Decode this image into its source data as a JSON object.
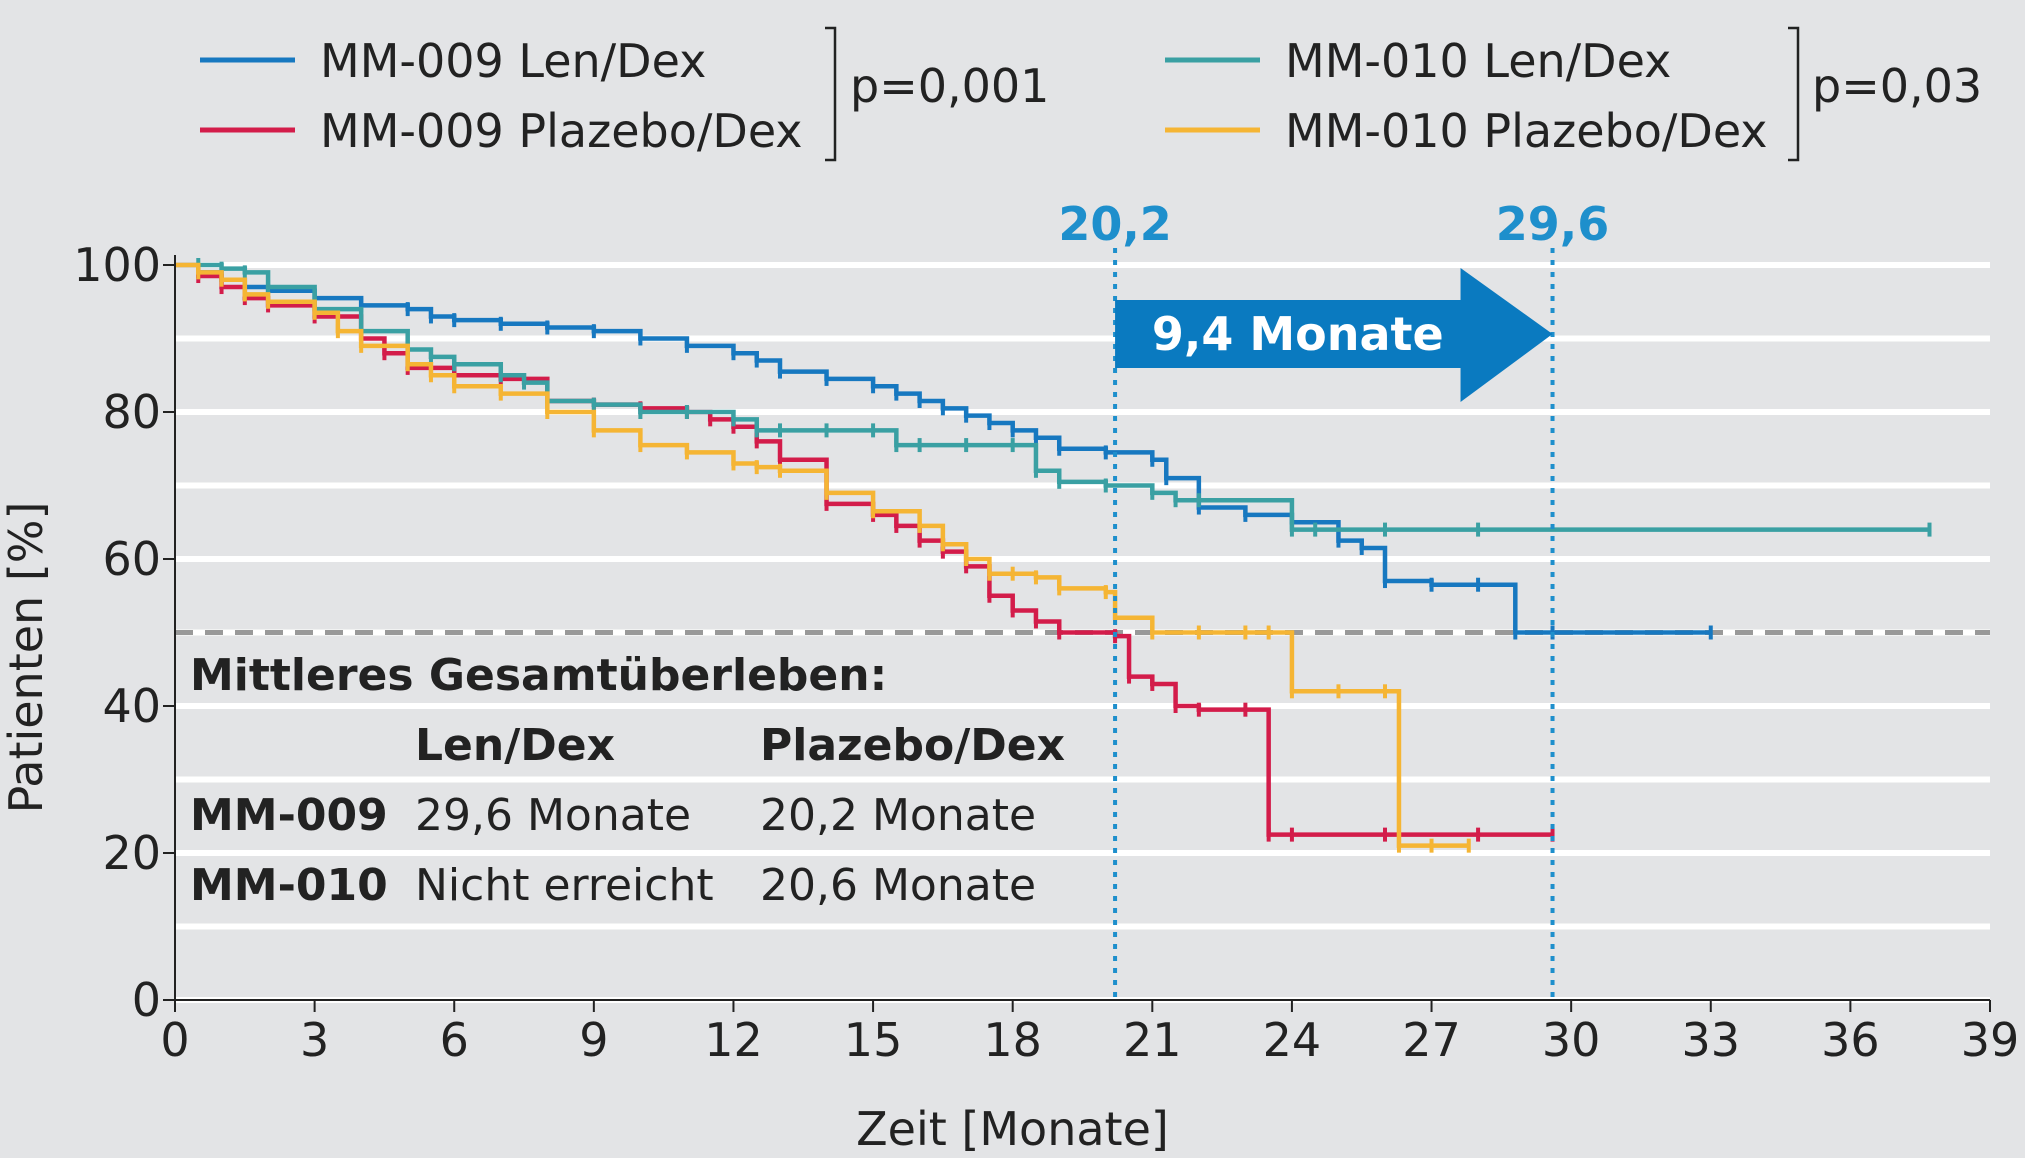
{
  "chart_data": {
    "type": "line",
    "subtype": "kaplan-meier",
    "xlabel": "Zeit [Monate]",
    "ylabel": "Patienten [%]",
    "xlim": [
      0,
      39
    ],
    "ylim": [
      0,
      100
    ],
    "xticks": [
      0,
      3,
      6,
      9,
      12,
      15,
      18,
      21,
      24,
      27,
      30,
      33,
      36,
      39
    ],
    "yticks": [
      0,
      20,
      40,
      60,
      80,
      100
    ],
    "grid": "horizontal",
    "background_color": "#e3e4e6",
    "reference_line": {
      "y": 50,
      "style": "dashed",
      "color": "#999999"
    },
    "legend": {
      "placement": "top",
      "groups": [
        {
          "entries": [
            "MM-009 Len/Dex",
            "MM-009 Plazebo/Dex"
          ],
          "pvalue": "p=0,001"
        },
        {
          "entries": [
            "MM-010 Len/Dex",
            "MM-010 Plazebo/Dex"
          ],
          "pvalue": "p=0,03"
        }
      ]
    },
    "median_markers": [
      {
        "x": 20.2,
        "label": "20,2"
      },
      {
        "x": 29.6,
        "label": "29,6"
      }
    ],
    "arrow": {
      "from": 20.2,
      "to": 29.6,
      "label": "9,4 Monate",
      "color": "#0a7ac0"
    },
    "series": [
      {
        "name": "MM-009 Len/Dex",
        "color": "#1778c0",
        "x": [
          0,
          0.5,
          1.0,
          1.5,
          2.0,
          3.0,
          4.0,
          5.0,
          5.5,
          6.0,
          7.0,
          8.0,
          9.0,
          10.0,
          11.0,
          12.0,
          12.5,
          13.0,
          14.0,
          15.0,
          15.5,
          16.0,
          16.5,
          17.0,
          17.5,
          18.0,
          18.5,
          19.0,
          20.0,
          21.0,
          21.3,
          22.0,
          23.0,
          24.0,
          25.0,
          25.5,
          26.0,
          27.0,
          28.0,
          28.8,
          29.6,
          33.0
        ],
        "y": [
          100,
          99,
          98,
          97,
          96.5,
          95.5,
          94.5,
          94,
          93,
          92.5,
          92,
          91.5,
          91,
          90,
          89,
          88,
          87,
          85.5,
          84.5,
          83.5,
          82.5,
          81.5,
          80.5,
          79.5,
          78.5,
          77.5,
          76.5,
          75,
          74.5,
          73.5,
          71,
          67,
          66,
          65,
          62.5,
          61.5,
          57,
          56.5,
          56.5,
          50,
          50,
          50
        ]
      },
      {
        "name": "MM-009 Plazebo/Dex",
        "color": "#d31c4a",
        "x": [
          0,
          0.5,
          1.0,
          1.5,
          2.0,
          3.0,
          4.0,
          4.5,
          5.0,
          6.0,
          7.0,
          8.0,
          9.0,
          10.0,
          11.0,
          11.5,
          12.0,
          12.5,
          13.0,
          14.0,
          15.0,
          15.5,
          16.0,
          16.5,
          17.0,
          17.5,
          18.0,
          18.5,
          19.0,
          20.2,
          20.5,
          21.0,
          21.5,
          22.0,
          23.0,
          23.5,
          24.0,
          26.0,
          28.0,
          29.6
        ],
        "y": [
          100,
          98.5,
          97,
          95.5,
          94.5,
          93,
          90,
          88,
          86,
          85,
          84.5,
          81.5,
          81,
          80.5,
          80,
          79,
          78,
          76,
          73.5,
          67.5,
          66,
          64.5,
          62.5,
          61,
          59,
          55,
          53,
          51.5,
          50,
          49.5,
          44,
          43,
          40,
          39.5,
          39.5,
          22.5,
          22.5,
          22.5,
          22.5,
          22.5
        ]
      },
      {
        "name": "MM-010 Len/Dex",
        "color": "#3aa0a3",
        "x": [
          0,
          0.5,
          1.0,
          1.5,
          2.0,
          3.0,
          4.0,
          5.0,
          5.5,
          6.0,
          7.0,
          7.5,
          8.0,
          9.0,
          10.0,
          11.0,
          12.0,
          12.5,
          13.0,
          14.0,
          15.0,
          15.5,
          16.0,
          17.0,
          18.0,
          18.5,
          19.0,
          20.0,
          21.0,
          21.5,
          22.0,
          24.0,
          24.5,
          26.0,
          28.0,
          37.7
        ],
        "y": [
          100,
          100,
          99.5,
          99,
          97,
          94,
          91,
          88.5,
          87.5,
          86.5,
          85,
          84,
          81.5,
          81,
          80,
          80,
          79,
          77.5,
          77.5,
          77.5,
          77.5,
          75.5,
          75.5,
          75.5,
          75.5,
          72,
          70.5,
          70,
          69,
          68,
          68,
          64,
          64,
          64,
          64,
          64
        ]
      },
      {
        "name": "MM-010 Plazebo/Dex",
        "color": "#f5b534",
        "x": [
          0,
          0.5,
          1.0,
          1.5,
          2.0,
          3.0,
          3.5,
          4.0,
          5.0,
          5.5,
          6.0,
          7.0,
          8.0,
          9.0,
          10.0,
          11.0,
          12.0,
          12.5,
          13.0,
          14.0,
          15.0,
          16.0,
          16.5,
          17.0,
          17.5,
          18.0,
          18.5,
          19.0,
          20.0,
          20.2,
          21.0,
          22.0,
          23.0,
          23.5,
          24.0,
          25.0,
          26.0,
          26.3,
          27.0,
          27.8
        ],
        "y": [
          100,
          99,
          98,
          96,
          95,
          93.5,
          91,
          89,
          86.5,
          85,
          83.5,
          82.5,
          80,
          77.5,
          75.5,
          74.5,
          73,
          72.5,
          72,
          69,
          66.5,
          64.5,
          62,
          60,
          58,
          58,
          57.5,
          56,
          55.5,
          52,
          50,
          50,
          50,
          50,
          42,
          42,
          42,
          21,
          21,
          21
        ]
      }
    ],
    "table": {
      "title": "Mittleres Gesamtüberleben:",
      "columns": [
        "Len/Dex",
        "Plazebo/Dex"
      ],
      "rows": [
        {
          "label": "MM-009",
          "values": [
            "29,6 Monate",
            "20,2 Monate"
          ]
        },
        {
          "label": "MM-010",
          "values": [
            "Nicht erreicht",
            "20,6 Monate"
          ]
        }
      ]
    }
  }
}
